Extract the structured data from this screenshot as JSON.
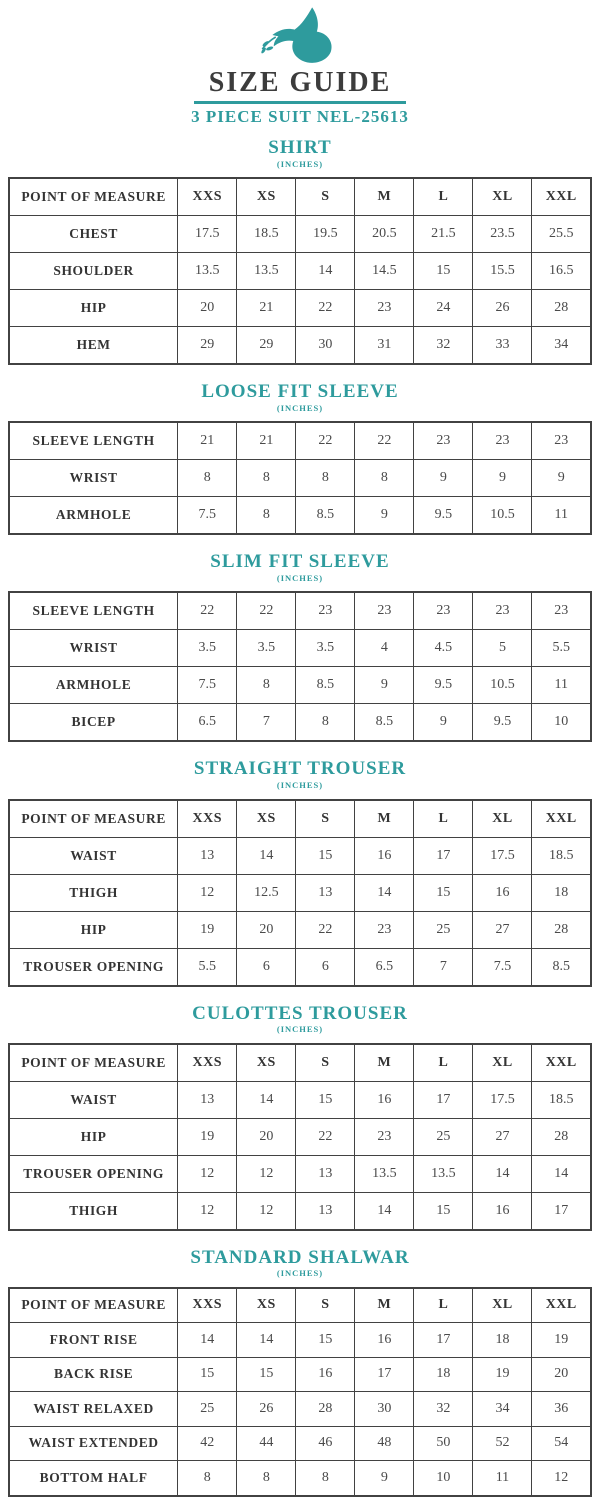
{
  "header": {
    "logo_icon": "dove-with-olive-branch",
    "title": "SIZE GUIDE",
    "subtitle": "3 PIECE SUIT NEL-25613",
    "accent_color": "#2E9B9D",
    "title_color": "#3C3C3C"
  },
  "point_of_measure_label": "POINT OF MEASURE",
  "size_columns": [
    "XXS",
    "XS",
    "S",
    "M",
    "L",
    "XL",
    "XXL"
  ],
  "sections": [
    {
      "title": "SHIRT",
      "units": "(INCHES)",
      "has_header_row": true,
      "rows": [
        {
          "label": "CHEST",
          "values": [
            "17.5",
            "18.5",
            "19.5",
            "20.5",
            "21.5",
            "23.5",
            "25.5"
          ]
        },
        {
          "label": "SHOULDER",
          "values": [
            "13.5",
            "13.5",
            "14",
            "14.5",
            "15",
            "15.5",
            "16.5"
          ]
        },
        {
          "label": "HIP",
          "values": [
            "20",
            "21",
            "22",
            "23",
            "24",
            "26",
            "28"
          ]
        },
        {
          "label": "HEM",
          "values": [
            "29",
            "29",
            "30",
            "31",
            "32",
            "33",
            "34"
          ]
        }
      ]
    },
    {
      "title": "LOOSE FIT SLEEVE",
      "units": "(INCHES)",
      "has_header_row": false,
      "rows": [
        {
          "label": "SLEEVE LENGTH",
          "values": [
            "21",
            "21",
            "22",
            "22",
            "23",
            "23",
            "23"
          ]
        },
        {
          "label": "WRIST",
          "values": [
            "8",
            "8",
            "8",
            "8",
            "9",
            "9",
            "9"
          ]
        },
        {
          "label": "ARMHOLE",
          "values": [
            "7.5",
            "8",
            "8.5",
            "9",
            "9.5",
            "10.5",
            "11"
          ]
        }
      ]
    },
    {
      "title": "SLIM FIT SLEEVE",
      "units": "(INCHES)",
      "has_header_row": false,
      "rows": [
        {
          "label": "SLEEVE LENGTH",
          "values": [
            "22",
            "22",
            "23",
            "23",
            "23",
            "23",
            "23"
          ]
        },
        {
          "label": "WRIST",
          "values": [
            "3.5",
            "3.5",
            "3.5",
            "4",
            "4.5",
            "5",
            "5.5"
          ]
        },
        {
          "label": "ARMHOLE",
          "values": [
            "7.5",
            "8",
            "8.5",
            "9",
            "9.5",
            "10.5",
            "11"
          ]
        },
        {
          "label": "BICEP",
          "values": [
            "6.5",
            "7",
            "8",
            "8.5",
            "9",
            "9.5",
            "10"
          ]
        }
      ]
    },
    {
      "title": "STRAIGHT TROUSER",
      "units": "(INCHES)",
      "has_header_row": true,
      "rows": [
        {
          "label": "WAIST",
          "values": [
            "13",
            "14",
            "15",
            "16",
            "17",
            "17.5",
            "18.5"
          ]
        },
        {
          "label": "THIGH",
          "values": [
            "12",
            "12.5",
            "13",
            "14",
            "15",
            "16",
            "18"
          ]
        },
        {
          "label": "HIP",
          "values": [
            "19",
            "20",
            "22",
            "23",
            "25",
            "27",
            "28"
          ]
        },
        {
          "label": "TROUSER OPENING",
          "values": [
            "5.5",
            "6",
            "6",
            "6.5",
            "7",
            "7.5",
            "8.5"
          ]
        }
      ]
    },
    {
      "title": "CULOTTES TROUSER",
      "units": "(INCHES)",
      "has_header_row": true,
      "rows": [
        {
          "label": "WAIST",
          "values": [
            "13",
            "14",
            "15",
            "16",
            "17",
            "17.5",
            "18.5"
          ]
        },
        {
          "label": "HIP",
          "values": [
            "19",
            "20",
            "22",
            "23",
            "25",
            "27",
            "28"
          ]
        },
        {
          "label": "TROUSER OPENING",
          "values": [
            "12",
            "12",
            "13",
            "13.5",
            "13.5",
            "14",
            "14"
          ]
        },
        {
          "label": "THIGH",
          "values": [
            "12",
            "12",
            "13",
            "14",
            "15",
            "16",
            "17"
          ]
        }
      ]
    },
    {
      "title": "STANDARD SHALWAR",
      "units": "(INCHES)",
      "has_header_row": true,
      "rows": [
        {
          "label": "FRONT RISE",
          "values": [
            "14",
            "14",
            "15",
            "16",
            "17",
            "18",
            "19"
          ]
        },
        {
          "label": "BACK RISE",
          "values": [
            "15",
            "15",
            "16",
            "17",
            "18",
            "19",
            "20"
          ]
        },
        {
          "label": "WAIST RELAXED",
          "values": [
            "25",
            "26",
            "28",
            "30",
            "32",
            "34",
            "36"
          ]
        },
        {
          "label": "WAIST EXTENDED",
          "values": [
            "42",
            "44",
            "46",
            "48",
            "50",
            "52",
            "54"
          ]
        },
        {
          "label": "BOTTOM HALF",
          "values": [
            "8",
            "8",
            "8",
            "9",
            "10",
            "11",
            "12"
          ]
        }
      ]
    }
  ]
}
